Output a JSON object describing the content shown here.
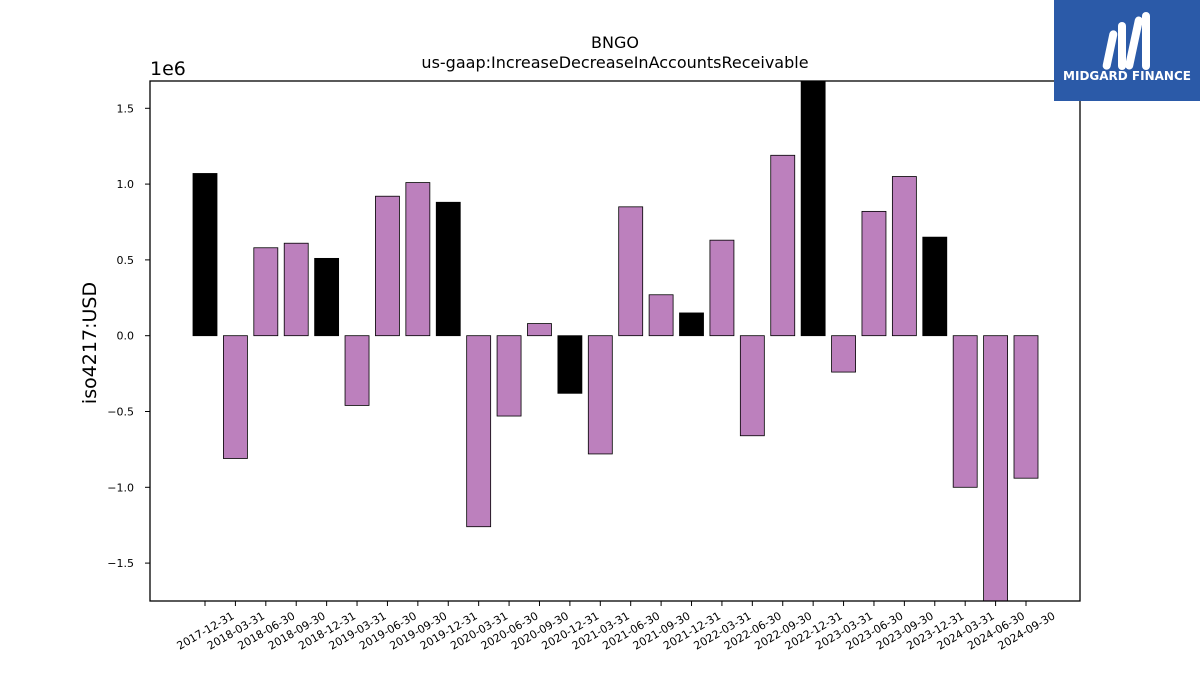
{
  "chart_data": {
    "type": "bar",
    "title": "BNGO",
    "subtitle": "us-gaap:IncreaseDecreaseInAccountsReceivable",
    "ylabel": "iso4217:USD",
    "xlabel": "",
    "y_scale_label": "1e6",
    "ylim": [
      -1.75,
      1.68
    ],
    "yticks": [
      -1.5,
      -1.0,
      -0.5,
      0.0,
      0.5,
      1.0,
      1.5
    ],
    "ytick_labels": [
      "−1.5",
      "−1.0",
      "−0.5",
      "0.0",
      "0.5",
      "1.0",
      "1.5"
    ],
    "grid": false,
    "categories": [
      "2017-12-31",
      "2018-03-31",
      "2018-06-30",
      "2018-09-30",
      "2018-12-31",
      "2019-03-31",
      "2019-06-30",
      "2019-09-30",
      "2019-12-31",
      "2020-03-31",
      "2020-06-30",
      "2020-09-30",
      "2020-12-31",
      "2021-03-31",
      "2021-06-30",
      "2021-09-30",
      "2021-12-31",
      "2022-03-31",
      "2022-06-30",
      "2022-09-30",
      "2022-12-31",
      "2023-03-31",
      "2023-06-30",
      "2023-09-30",
      "2023-12-31",
      "2024-03-31",
      "2024-06-30",
      "2024-09-30"
    ],
    "values": [
      1.07,
      -0.81,
      0.58,
      0.61,
      0.51,
      -0.46,
      0.92,
      1.01,
      0.88,
      -1.26,
      -0.53,
      0.08,
      -0.38,
      -0.78,
      0.85,
      0.27,
      0.15,
      0.63,
      -0.66,
      1.19,
      1.68,
      -0.24,
      0.82,
      1.05,
      0.65,
      -1.0,
      -1.75,
      -0.94
    ],
    "colors": {
      "quarter": "#bc80bd",
      "year_end": "#000000",
      "bar_edge": "#000000"
    }
  },
  "logo": {
    "text": "MIDGARD FINANCE",
    "color": "#2b5aa8"
  }
}
